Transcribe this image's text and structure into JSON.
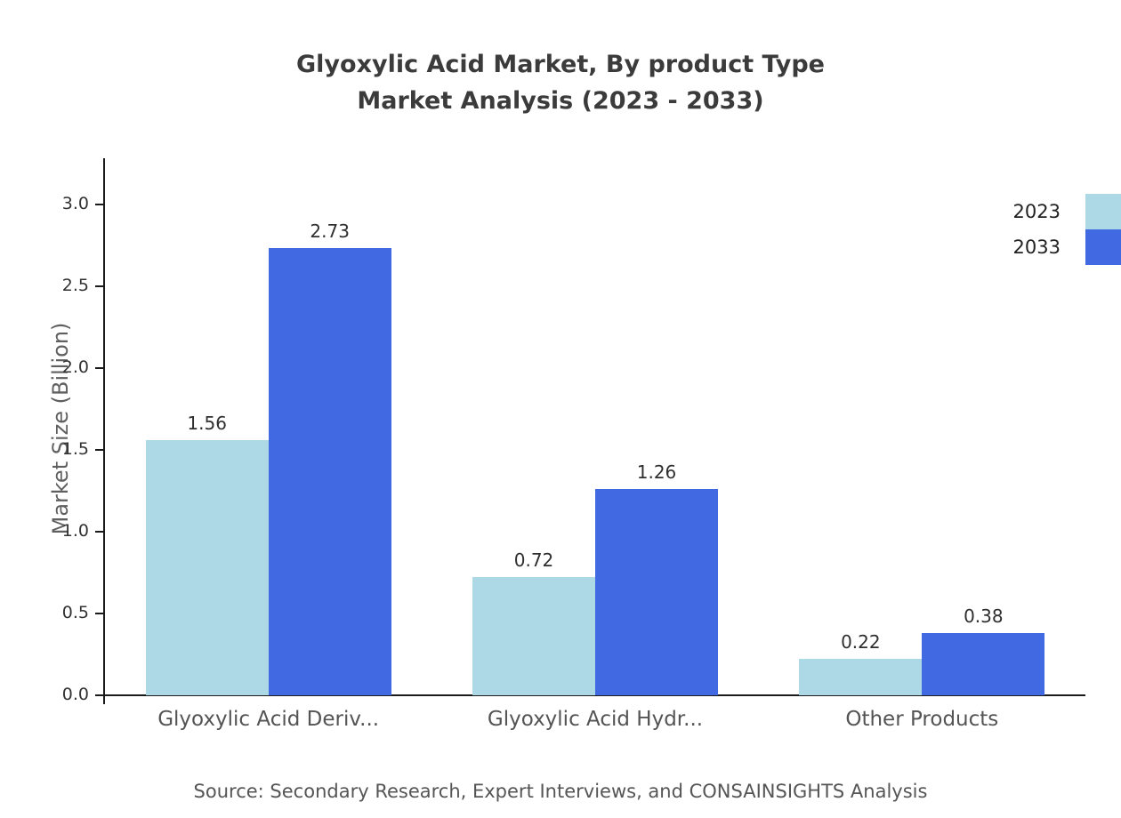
{
  "title": {
    "line1": "Glyoxylic Acid Market, By product Type",
    "line2": "Market Analysis (2023 - 2033)"
  },
  "source": "Source: Secondary Research, Expert Interviews, and CONSAINSIGHTS Analysis",
  "chart_data": {
    "type": "bar",
    "title": "Glyoxylic Acid Market, By product Type Market Analysis (2023 - 2033)",
    "categories": [
      "Glyoxylic Acid Deriv...",
      "Glyoxylic Acid Hydr...",
      "Other Products"
    ],
    "series": [
      {
        "name": "2023",
        "color": "#ADD8E6",
        "values": [
          1.56,
          0.72,
          0.22
        ]
      },
      {
        "name": "2033",
        "color": "#4169E1",
        "values": [
          2.73,
          1.26,
          0.38
        ]
      }
    ],
    "xlabel": "",
    "ylabel": "Market Size (Billion)",
    "ylim": [
      0,
      3.27
    ],
    "yticks": [
      0.0,
      0.5,
      1.0,
      1.5,
      2.0,
      2.5,
      3.0
    ],
    "grid": false,
    "legend_position": "top-right"
  }
}
